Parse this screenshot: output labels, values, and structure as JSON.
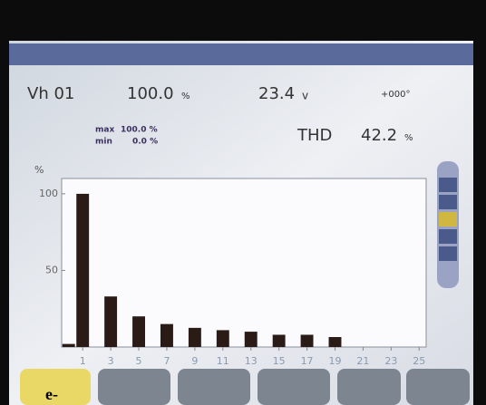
{
  "screen": {
    "channel": "Vh 01",
    "level": "100.0",
    "level_unit": "%",
    "voltage": "23.4",
    "voltage_unit": "v",
    "phase": "+000°",
    "max_label": "max",
    "max_value": "100.0 %",
    "min_label": "min",
    "min_value": "0.0 %",
    "thd_label": "THD",
    "thd_value": "42.2",
    "thd_unit": "%",
    "tab": "e-"
  },
  "chart_data": {
    "type": "bar",
    "y_label": "%",
    "x": [
      0,
      1,
      3,
      5,
      7,
      9,
      11,
      13,
      15,
      17,
      19
    ],
    "values": [
      2,
      100,
      33,
      20,
      15,
      12.5,
      11,
      10,
      8,
      8,
      6.5
    ],
    "color": "#2b1b17",
    "xlim": [
      -0.5,
      25.5
    ],
    "xticks": [
      1,
      3,
      5,
      7,
      9,
      11,
      13,
      15,
      17,
      19,
      21,
      23,
      25
    ],
    "ylim": [
      0,
      110
    ],
    "yticks": [
      50,
      100
    ]
  }
}
